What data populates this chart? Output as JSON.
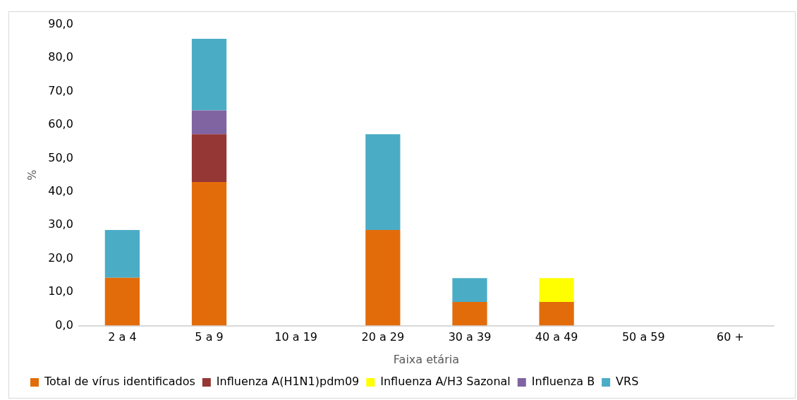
{
  "chart_data": {
    "type": "bar",
    "stacked": true,
    "xlabel": "Faixa etária",
    "ylabel": "%",
    "categories": [
      "2 a 4",
      "5 a 9",
      "10 a 19",
      "20 a 29",
      "30 a 39",
      "40 a 49",
      "50 a 59",
      "60 +"
    ],
    "series": [
      {
        "name": "Total de vírus identificados",
        "color": "#e36c0a",
        "values": [
          14.3,
          42.9,
          0,
          28.6,
          7.1,
          7.1,
          0,
          0
        ]
      },
      {
        "name": "Influenza A(H1N1)pdm09",
        "color": "#953735",
        "values": [
          0,
          14.3,
          0,
          0,
          0,
          0,
          0,
          0
        ]
      },
      {
        "name": "Influenza A/H3 Sazonal",
        "color": "#ffff00",
        "values": [
          0,
          0,
          0,
          0,
          0,
          7.1,
          0,
          0
        ]
      },
      {
        "name": "Influenza B",
        "color": "#8064a2",
        "values": [
          0,
          7.1,
          0,
          0,
          0,
          0,
          0,
          0
        ]
      },
      {
        "name": "VRS",
        "color": "#4bacc6",
        "values": [
          14.3,
          21.4,
          0,
          28.6,
          7.1,
          0,
          0,
          0
        ]
      }
    ],
    "ylim": [
      0,
      90
    ],
    "yticks": [
      {
        "value": 0,
        "label": "0,0"
      },
      {
        "value": 10,
        "label": "10,0"
      },
      {
        "value": 20,
        "label": "20,0"
      },
      {
        "value": 30,
        "label": "30,0"
      },
      {
        "value": 40,
        "label": "40,0"
      },
      {
        "value": 50,
        "label": "50,0"
      },
      {
        "value": 60,
        "label": "60,0"
      },
      {
        "value": 70,
        "label": "70,0"
      },
      {
        "value": 80,
        "label": "80,0"
      },
      {
        "value": 90,
        "label": "90,0"
      }
    ],
    "grid": false,
    "legend": "bottom"
  }
}
